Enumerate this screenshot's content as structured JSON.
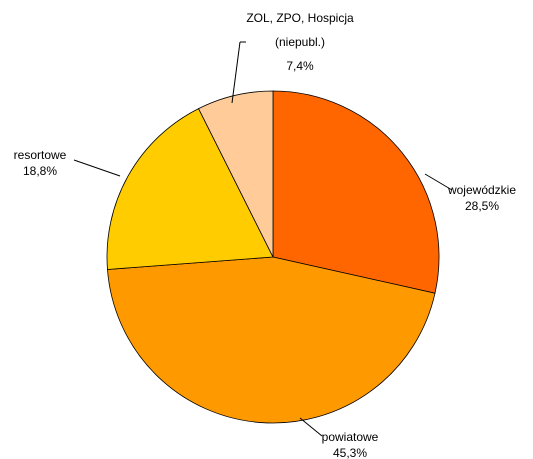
{
  "chart_data": {
    "type": "pie",
    "categories": [
      "wojewódzkie",
      "powiatowe",
      "resortowe",
      "ZOL, ZPO, Hospicja (niepubl.)"
    ],
    "values": [
      28.5,
      45.3,
      18.8,
      7.4
    ],
    "value_labels": [
      "28,5%",
      "45,3%",
      "18,8%",
      "7,4%"
    ],
    "colors": [
      "#FF6600",
      "#FF9900",
      "#FFCC00",
      "#FFCC99"
    ]
  }
}
